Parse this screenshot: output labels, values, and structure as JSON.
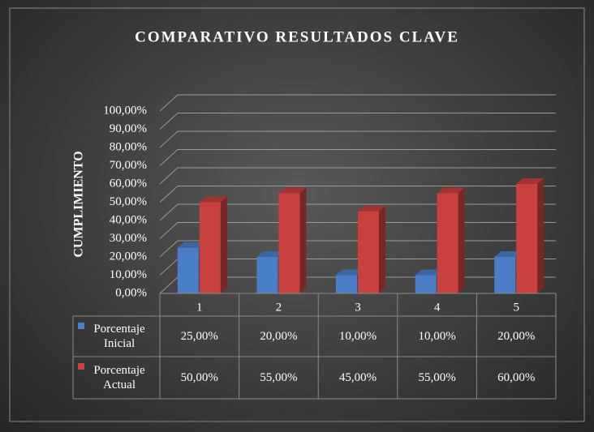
{
  "chart_data": {
    "type": "bar3d",
    "title": "COMPARATIVO RESULTADOS CLAVE",
    "y_label": "CUMPLIMIENTO",
    "categories": [
      "1",
      "2",
      "3",
      "4",
      "5"
    ],
    "series": [
      {
        "name": "Porcentaje Inicial",
        "color": "#4a7fc8",
        "values": [
          25,
          20,
          10,
          10,
          20
        ],
        "value_labels": [
          "25,00%",
          "20,00%",
          "10,00%",
          "10,00%",
          "20,00%"
        ]
      },
      {
        "name": "Porcentaje Actual",
        "color": "#c9413f",
        "values": [
          50,
          55,
          45,
          55,
          60
        ],
        "value_labels": [
          "50,00%",
          "55,00%",
          "45,00%",
          "55,00%",
          "60,00%"
        ]
      }
    ],
    "ylim": [
      0,
      100
    ],
    "yticks": [
      {
        "value": 0,
        "label": "0,00%"
      },
      {
        "value": 10,
        "label": "10,00%"
      },
      {
        "value": 20,
        "label": "20,00%"
      },
      {
        "value": 30,
        "label": "30,00%"
      },
      {
        "value": 40,
        "label": "40,00%"
      },
      {
        "value": 50,
        "label": "50,00%"
      },
      {
        "value": 60,
        "label": "60,00%"
      },
      {
        "value": 70,
        "label": "70,00%"
      },
      {
        "value": 80,
        "label": "80,00%"
      },
      {
        "value": 90,
        "label": "90,00%"
      },
      {
        "value": 100,
        "label": "100,00%"
      }
    ],
    "grid": true
  }
}
